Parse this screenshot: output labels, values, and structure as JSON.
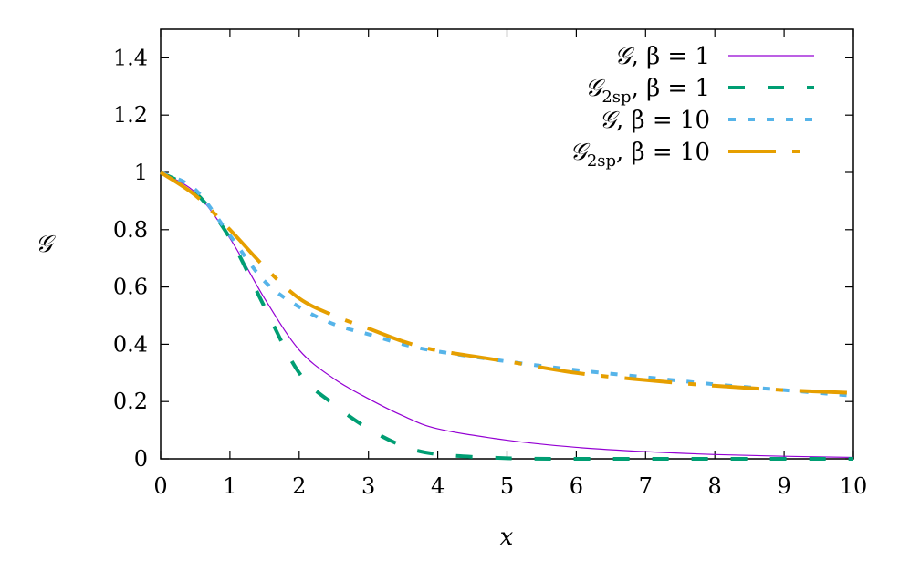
{
  "chart_data": {
    "type": "line",
    "title": "",
    "xlabel": "x",
    "ylabel": "𝒢",
    "xlim": [
      0,
      10
    ],
    "ylim": [
      0,
      1.5
    ],
    "xticks": [
      "0",
      "1",
      "2",
      "3",
      "4",
      "5",
      "6",
      "7",
      "8",
      "9",
      "10"
    ],
    "yticks": [
      "0",
      "0.2",
      "0.4",
      "0.6",
      "0.8",
      "1",
      "1.2",
      "1.4"
    ],
    "grid": false,
    "legend_position": "top-right",
    "x": [
      0,
      0.5,
      1,
      1.5,
      2,
      2.5,
      3,
      3.5,
      4,
      5,
      6,
      7,
      8,
      9,
      10
    ],
    "series": [
      {
        "name": "𝒢, β = 1",
        "symbol": "𝒢",
        "subscript": "",
        "param": ", β = 1",
        "color": "#9400d3",
        "style": "solid",
        "values": [
          1,
          0.93,
          0.77,
          0.56,
          0.38,
          0.28,
          0.21,
          0.15,
          0.105,
          0.065,
          0.04,
          0.025,
          0.015,
          0.009,
          0.005
        ]
      },
      {
        "name": "𝒢2sp, β = 1",
        "symbol": "𝒢",
        "subscript": "2sp",
        "param": ", β = 1",
        "color": "#009e73",
        "style": "dashed",
        "values": [
          1,
          0.93,
          0.77,
          0.53,
          0.3,
          0.19,
          0.105,
          0.045,
          0.016,
          0.002,
          0,
          0,
          0,
          0,
          0
        ]
      },
      {
        "name": "𝒢, β = 10",
        "symbol": "𝒢",
        "subscript": "",
        "param": ", β = 10",
        "color": "#56b4e9",
        "style": "dotted",
        "values": [
          1,
          0.94,
          0.78,
          0.62,
          0.53,
          0.47,
          0.435,
          0.4,
          0.375,
          0.34,
          0.31,
          0.285,
          0.26,
          0.24,
          0.22
        ]
      },
      {
        "name": "𝒢2sp, β = 10",
        "symbol": "𝒢",
        "subscript": "2sp",
        "param": ", β = 10",
        "color": "#e69f00",
        "style": "dash-dot",
        "values": [
          1,
          0.92,
          0.8,
          0.67,
          0.56,
          0.5,
          0.455,
          0.41,
          0.378,
          0.34,
          0.3,
          0.275,
          0.255,
          0.24,
          0.23
        ]
      }
    ]
  }
}
